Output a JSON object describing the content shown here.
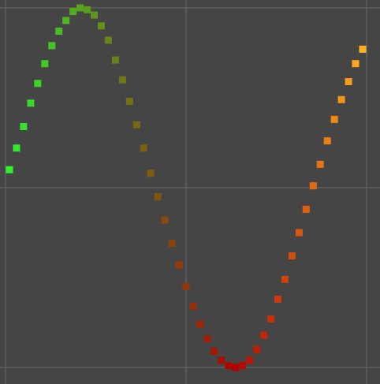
{
  "chart_data": {
    "type": "scatter",
    "title": "",
    "xlabel": "",
    "ylabel": "",
    "xlim": [
      0,
      1
    ],
    "ylim": [
      -1,
      1
    ],
    "grid": true,
    "legend": "none",
    "colors": {
      "background": "#454545",
      "grid": "#6a6a6a",
      "gradient_start": "#2ef02e",
      "gradient_mid_dark": "#b00000",
      "gradient_end": "#ffb020"
    },
    "series": [
      {
        "x": [
          0.0,
          0.02,
          0.04,
          0.06,
          0.08,
          0.1,
          0.12,
          0.14,
          0.16,
          0.18,
          0.2,
          0.22,
          0.24,
          0.26,
          0.28,
          0.3,
          0.32,
          0.34,
          0.36,
          0.38,
          0.4,
          0.42,
          0.44,
          0.46,
          0.48,
          0.5,
          0.52,
          0.54,
          0.56,
          0.58,
          0.6,
          0.62,
          0.64,
          0.66,
          0.68,
          0.7,
          0.72,
          0.74,
          0.76,
          0.78,
          0.8,
          0.82,
          0.84,
          0.86,
          0.88,
          0.9,
          0.92,
          0.94,
          0.96,
          0.98,
          1.0
        ],
        "y": [
          0.1,
          0.22,
          0.34,
          0.47,
          0.58,
          0.69,
          0.79,
          0.87,
          0.93,
          0.98,
          1.0,
          0.99,
          0.96,
          0.9,
          0.82,
          0.71,
          0.6,
          0.48,
          0.35,
          0.22,
          0.08,
          -0.05,
          -0.18,
          -0.31,
          -0.43,
          -0.55,
          -0.66,
          -0.76,
          -0.84,
          -0.91,
          -0.96,
          -0.99,
          -1.0,
          -0.99,
          -0.96,
          -0.9,
          -0.82,
          -0.73,
          -0.62,
          -0.51,
          -0.38,
          -0.25,
          -0.12,
          0.01,
          0.13,
          0.26,
          0.38,
          0.49,
          0.59,
          0.69,
          0.77
        ]
      }
    ]
  }
}
